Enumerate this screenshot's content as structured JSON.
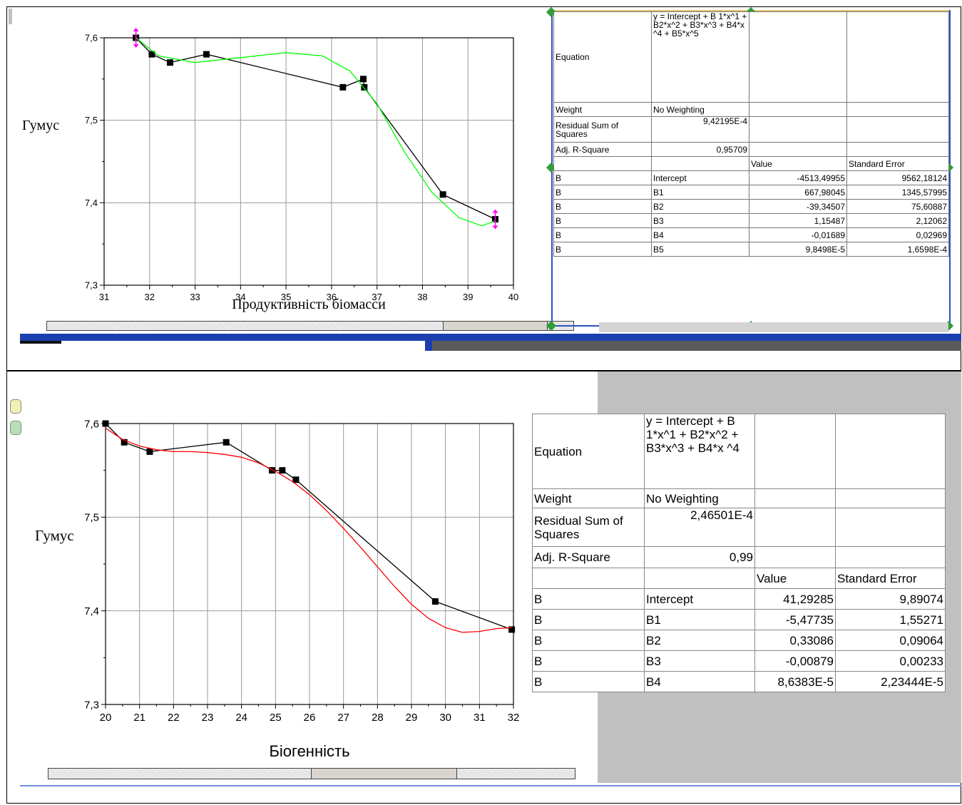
{
  "chart_data": [
    {
      "type": "line",
      "xlabel": "Продуктивність біомасси",
      "ylabel": "Гумус",
      "xlim": [
        31,
        40
      ],
      "ylim": [
        7.3,
        7.6
      ],
      "grid": true,
      "xticks": [
        "31",
        "32",
        "33",
        "34",
        "35",
        "36",
        "37",
        "38",
        "39",
        "40"
      ],
      "yticks": [
        "7,3",
        "7,4",
        "7,5",
        "7,6"
      ],
      "series": [
        {
          "x": [
            31.7,
            32.05,
            32.45,
            33.25,
            36.25,
            36.7,
            36.72,
            38.45,
            39.6
          ],
          "y": [
            7.6,
            7.58,
            7.57,
            7.58,
            7.54,
            7.55,
            7.54,
            7.41,
            7.38
          ],
          "color": "#000000"
        },
        {
          "x": [
            31.7,
            32.2,
            33.0,
            34.0,
            35.0,
            35.8,
            36.4,
            37.0,
            37.6,
            38.2,
            38.8,
            39.3,
            39.6
          ],
          "y": [
            7.6,
            7.578,
            7.57,
            7.576,
            7.582,
            7.578,
            7.56,
            7.52,
            7.462,
            7.413,
            7.382,
            7.372,
            7.378
          ],
          "color": "#00ff00"
        }
      ],
      "fit_table": {
        "equation": "y = Intercept + B 1*x^1 + B2*x^2 + B3*x^3 + B4*x ^4 + B5*x^5",
        "weight": "No Weighting",
        "rss": "9,42195E-4",
        "adj_r2": "0,95709",
        "rows": [
          {
            "label": "B",
            "param": "Intercept",
            "value": "-4513,49955",
            "se": "9562,18124"
          },
          {
            "label": "B",
            "param": "B1",
            "value": "667,98045",
            "se": "1345,57995"
          },
          {
            "label": "B",
            "param": "B2",
            "value": "-39,34507",
            "se": "75,60887"
          },
          {
            "label": "B",
            "param": "B3",
            "value": "1,15487",
            "se": "2,12062"
          },
          {
            "label": "B",
            "param": "B4",
            "value": "-0,01689",
            "se": "0,02969"
          },
          {
            "label": "B",
            "param": "B5",
            "value": "9,8498E-5",
            "se": "1,6598E-4"
          }
        ]
      }
    },
    {
      "type": "line",
      "xlabel": "Біогенність",
      "ylabel": "Гумус",
      "xlim": [
        20,
        32
      ],
      "ylim": [
        7.3,
        7.6
      ],
      "grid": true,
      "xticks": [
        "20",
        "21",
        "22",
        "23",
        "24",
        "25",
        "26",
        "27",
        "28",
        "29",
        "30",
        "31",
        "32"
      ],
      "yticks": [
        "7,3",
        "7,4",
        "7,5",
        "7,6"
      ],
      "series": [
        {
          "x": [
            20.0,
            20.55,
            21.3,
            23.55,
            24.9,
            25.2,
            25.6,
            29.7,
            31.95
          ],
          "y": [
            7.6,
            7.58,
            7.57,
            7.58,
            7.55,
            7.55,
            7.54,
            7.41,
            7.38
          ],
          "color": "#000000"
        },
        {
          "x": [
            20.0,
            20.5,
            21.0,
            21.5,
            22.0,
            22.5,
            23.0,
            23.5,
            24.0,
            24.5,
            25.0,
            25.5,
            26.0,
            26.5,
            27.0,
            27.5,
            28.0,
            28.5,
            29.0,
            29.5,
            30.0,
            30.5,
            31.0,
            31.5,
            31.95
          ],
          "y": [
            7.595,
            7.583,
            7.576,
            7.572,
            7.57,
            7.57,
            7.569,
            7.567,
            7.564,
            7.558,
            7.549,
            7.538,
            7.524,
            7.507,
            7.488,
            7.468,
            7.447,
            7.426,
            7.407,
            7.392,
            7.382,
            7.377,
            7.378,
            7.381,
            7.382
          ],
          "color": "#ff0000"
        }
      ],
      "fit_table": {
        "equation": "y = Intercept + B 1*x^1 + B2*x^2 + B3*x^3 + B4*x ^4",
        "weight": "No Weighting",
        "rss": "2,46501E-4",
        "adj_r2": "0,99",
        "rows": [
          {
            "label": "B",
            "param": "Intercept",
            "value": "41,29285",
            "se": "9,89074"
          },
          {
            "label": "B",
            "param": "B1",
            "value": "-5,47735",
            "se": "1,55271"
          },
          {
            "label": "B",
            "param": "B2",
            "value": "0,33086",
            "se": "0,09064"
          },
          {
            "label": "B",
            "param": "B3",
            "value": "-0,00879",
            "se": "0,00233"
          },
          {
            "label": "B",
            "param": "B4",
            "value": "8,6383E-5",
            "se": "2,23444E-5"
          }
        ]
      }
    }
  ],
  "table_labels": {
    "equation": "Equation",
    "weight": "Weight",
    "rss": "Residual Sum of Squares",
    "adj_r2": "Adj. R-Square",
    "value": "Value",
    "se": "Standard Error"
  }
}
